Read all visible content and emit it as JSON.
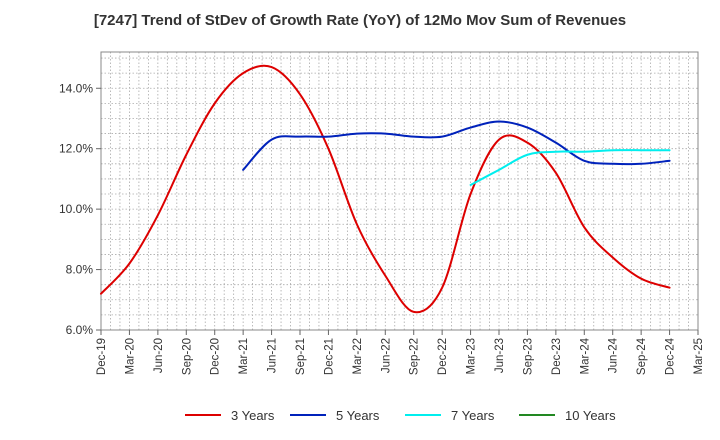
{
  "chart_data": {
    "type": "line",
    "title": "[7247]  Trend of StDev of Growth Rate (YoY) of 12Mo Mov Sum of Revenues",
    "xlabel": "",
    "ylabel": "",
    "x": [
      "Dec-19",
      "Mar-20",
      "Jun-20",
      "Sep-20",
      "Dec-20",
      "Mar-21",
      "Jun-21",
      "Sep-21",
      "Dec-21",
      "Mar-22",
      "Jun-22",
      "Sep-22",
      "Dec-22",
      "Mar-23",
      "Jun-23",
      "Sep-23",
      "Dec-23",
      "Mar-24",
      "Jun-24",
      "Sep-24",
      "Dec-24",
      "Mar-25"
    ],
    "ylim": [
      6.0,
      15.2
    ],
    "yticks": [
      6.0,
      8.0,
      10.0,
      12.0,
      14.0
    ],
    "ytick_labels": [
      "6.0%",
      "8.0%",
      "10.0%",
      "12.0%",
      "14.0%"
    ],
    "series": [
      {
        "name": "3 Years",
        "color": "#dd0000",
        "values": [
          7.2,
          8.2,
          9.8,
          11.8,
          13.5,
          14.5,
          14.7,
          13.8,
          12.0,
          9.5,
          7.8,
          6.6,
          7.4,
          10.5,
          12.3,
          12.2,
          11.2,
          9.4,
          8.4,
          7.7,
          7.4,
          null
        ]
      },
      {
        "name": "5 Years",
        "color": "#0022bb",
        "values": [
          null,
          null,
          null,
          null,
          null,
          11.3,
          12.3,
          12.4,
          12.4,
          12.5,
          12.5,
          12.4,
          12.4,
          12.7,
          12.9,
          12.7,
          12.2,
          11.6,
          11.5,
          11.5,
          11.6,
          null
        ]
      },
      {
        "name": "7 Years",
        "color": "#00eeee",
        "values": [
          null,
          null,
          null,
          null,
          null,
          null,
          null,
          null,
          null,
          null,
          null,
          null,
          null,
          10.8,
          11.3,
          11.8,
          11.9,
          11.9,
          11.95,
          11.95,
          11.95,
          null
        ]
      },
      {
        "name": "10 Years",
        "color": "#228822",
        "values": [
          null,
          null,
          null,
          null,
          null,
          null,
          null,
          null,
          null,
          null,
          null,
          null,
          null,
          null,
          null,
          null,
          null,
          null,
          null,
          null,
          null,
          null
        ]
      }
    ],
    "grid": true,
    "legend_position": "bottom"
  }
}
